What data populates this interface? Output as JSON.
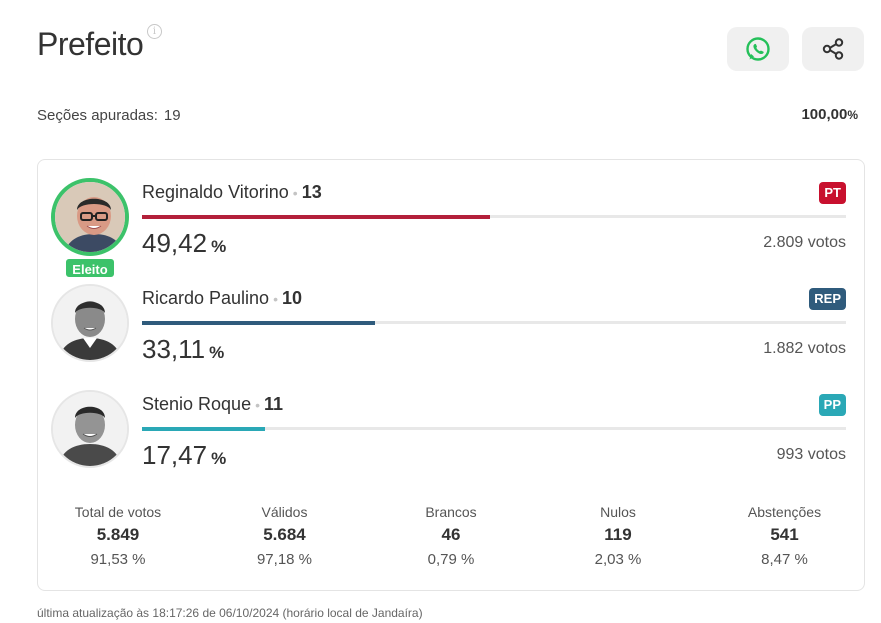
{
  "header": {
    "title": "Prefeito",
    "info_icon": "i",
    "whatsapp_icon": "whatsapp-icon",
    "share_icon": "share-icon"
  },
  "secoes": {
    "label": "Seções apuradas:",
    "value": "19",
    "percent": "100,00",
    "percent_unit": "%"
  },
  "candidates": [
    {
      "name": "Reginaldo Vitorino",
      "number": "13",
      "party": "PT",
      "party_color": "#c8102e",
      "bar_color": "#b3203a",
      "percent": "49,42",
      "percent_value": 49.42,
      "votes": "2.809 votos",
      "elected": true,
      "badge": "Eleito"
    },
    {
      "name": "Ricardo Paulino",
      "number": "10",
      "party": "REP",
      "party_color": "#2f5b7c",
      "bar_color": "#2f5b7c",
      "percent": "33,11",
      "percent_value": 33.11,
      "votes": "1.882 votos",
      "elected": false
    },
    {
      "name": "Stenio Roque",
      "number": "11",
      "party": "PP",
      "party_color": "#2aa8b6",
      "bar_color": "#2aa8b6",
      "percent": "17,47",
      "percent_value": 17.47,
      "votes": "993 votos",
      "elected": false
    }
  ],
  "percent_unit": "%",
  "totals": [
    {
      "label": "Total de votos",
      "value": "5.849",
      "percent": "91,53 %"
    },
    {
      "label": "Válidos",
      "value": "5.684",
      "percent": "97,18 %"
    },
    {
      "label": "Brancos",
      "value": "46",
      "percent": "0,79 %"
    },
    {
      "label": "Nulos",
      "value": "119",
      "percent": "2,03 %"
    },
    {
      "label": "Abstenções",
      "value": "541",
      "percent": "8,47 %"
    }
  ],
  "footer": "última atualização às 18:17:26 de 06/10/2024 (horário local de Jandaíra)"
}
